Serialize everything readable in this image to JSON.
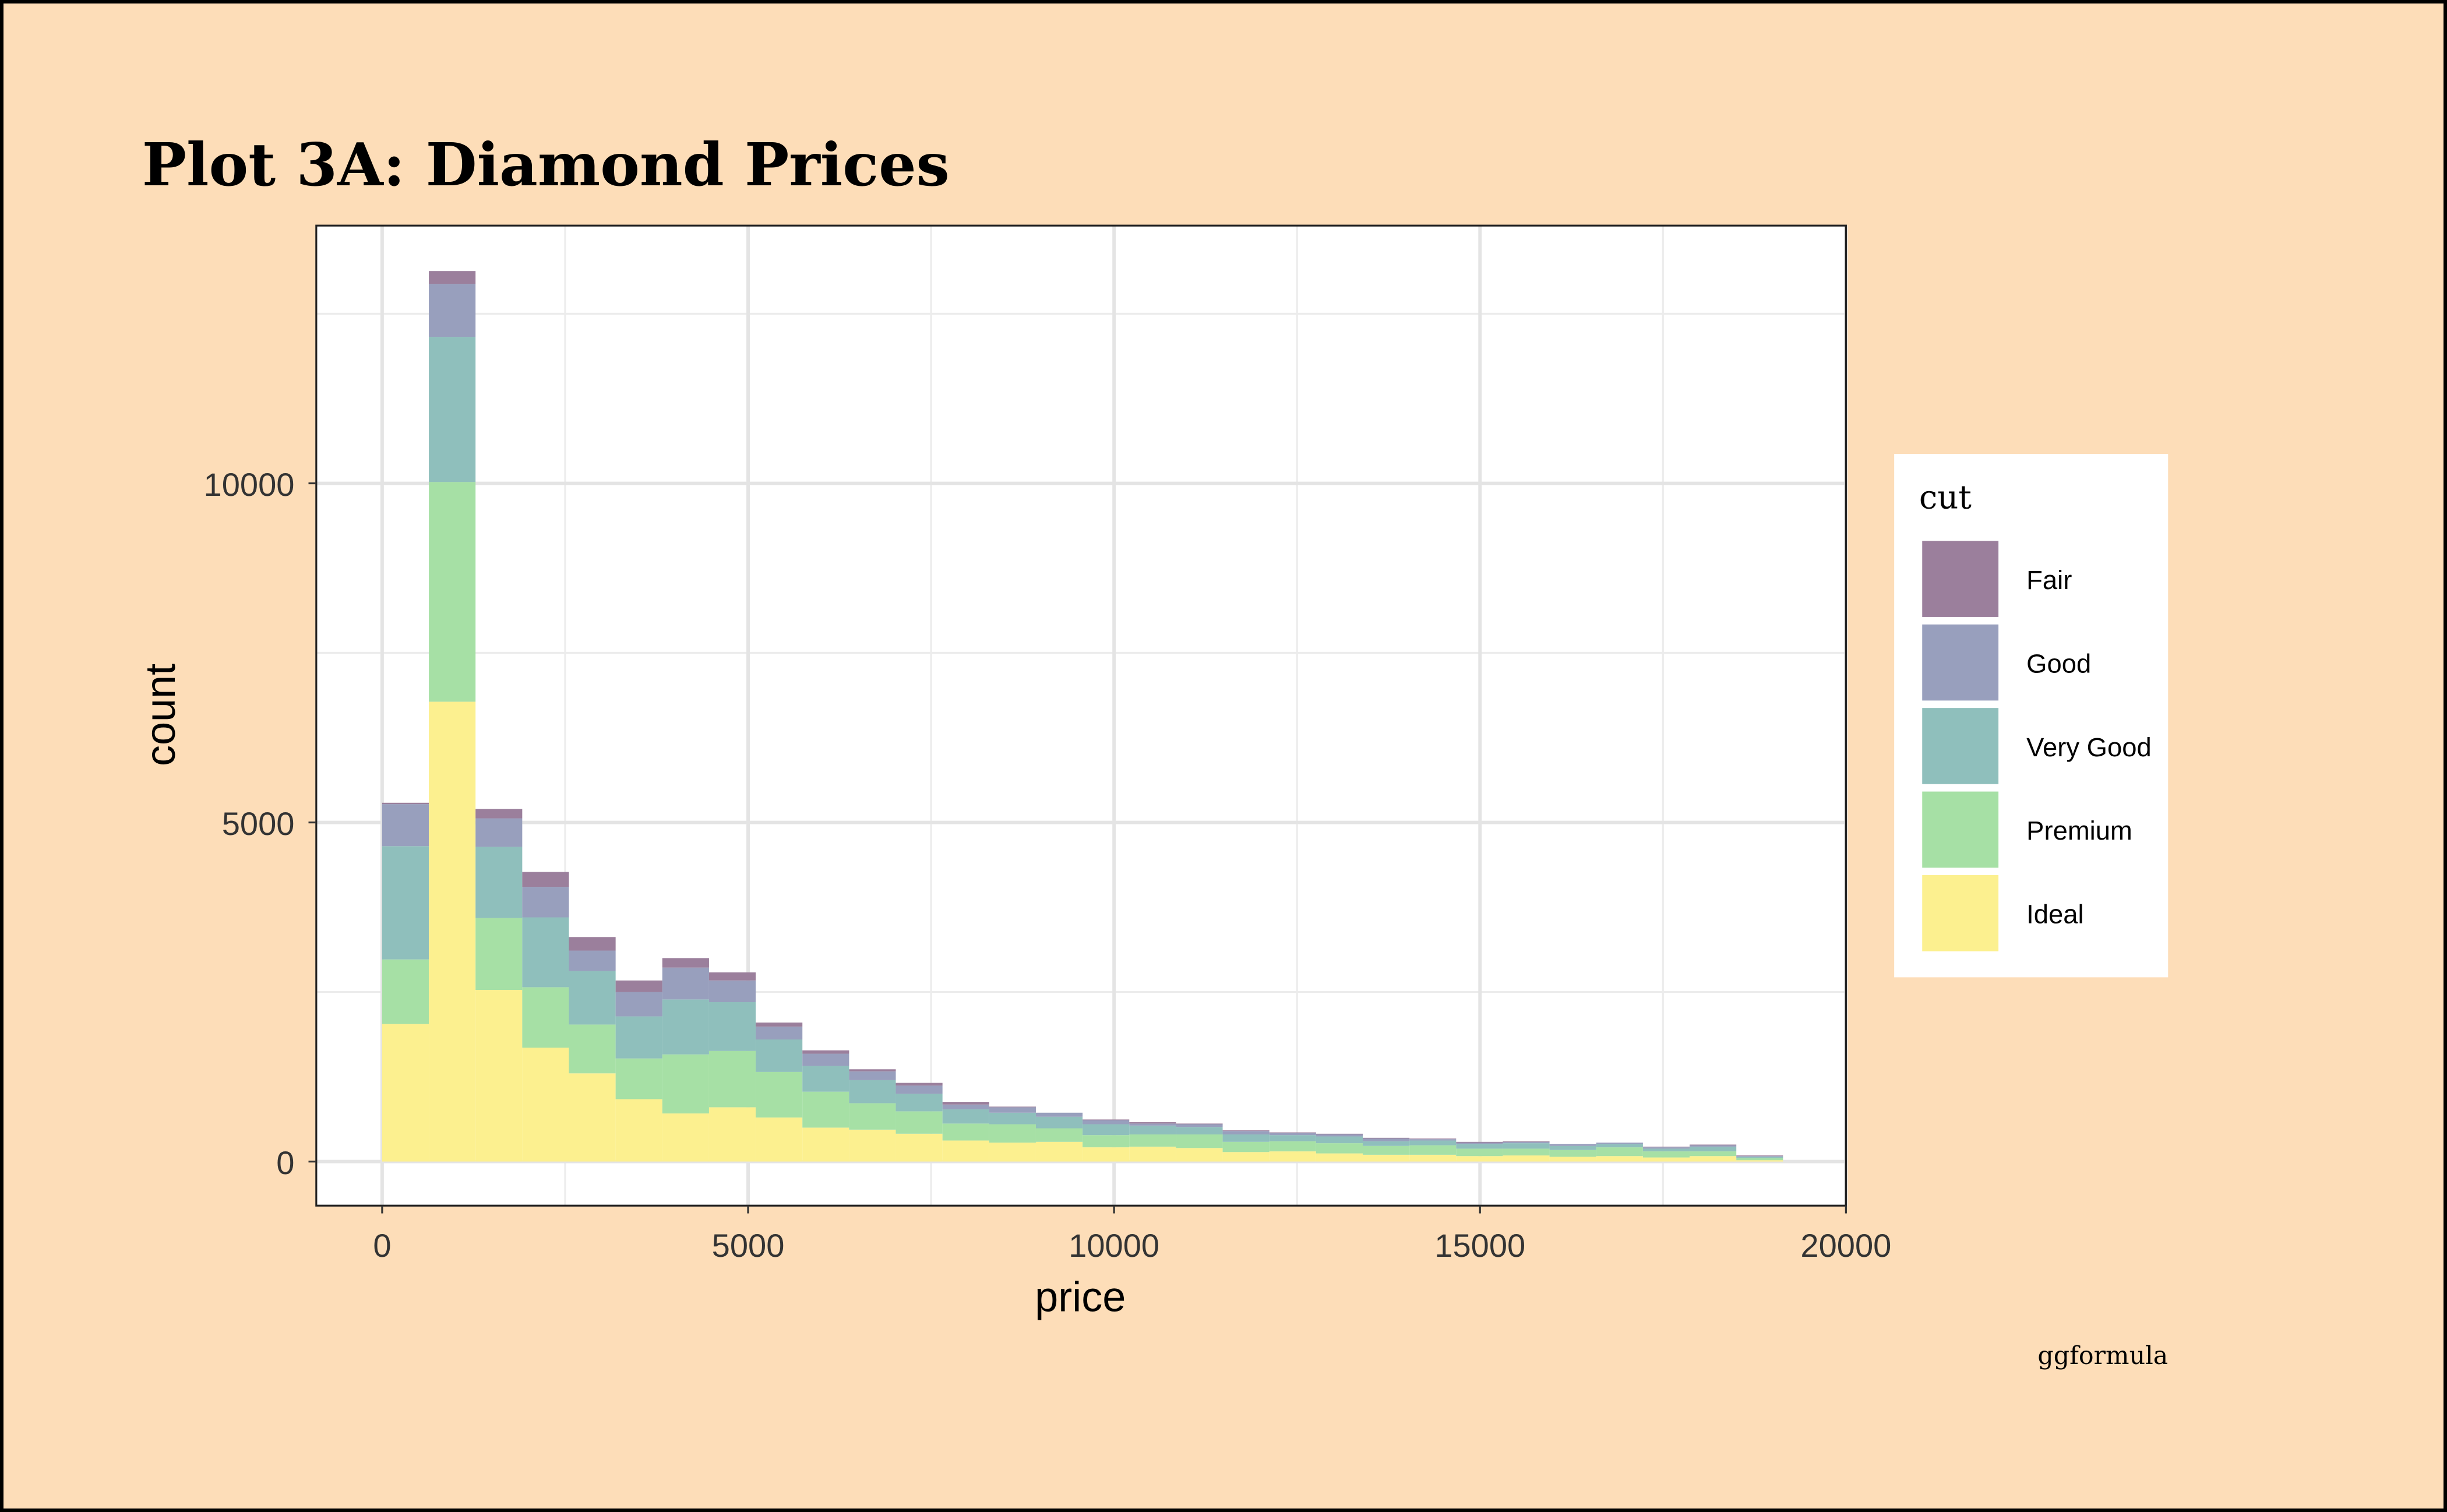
{
  "chart_data": {
    "type": "bar",
    "subtype": "stacked-histogram",
    "title": "Plot 3A: Diamond Prices",
    "xlabel": "price",
    "ylabel": "count",
    "caption": "ggformula",
    "xlim": [
      -900,
      20000
    ],
    "ylim": [
      -650,
      13800
    ],
    "x_ticks": [
      0,
      5000,
      10000,
      15000,
      20000
    ],
    "x_tick_labels": [
      "0",
      "5000",
      "10000",
      "15000",
      "20000"
    ],
    "y_ticks": [
      0,
      5000,
      10000
    ],
    "y_tick_labels": [
      "0",
      "5000",
      "10000"
    ],
    "grid": true,
    "bin_width": 638,
    "bin_start": 0,
    "legend": {
      "title": "cut",
      "placement": "right"
    },
    "series": [
      {
        "name": "Fair",
        "color": "#9b7f9c",
        "values": [
          20,
          190,
          140,
          220,
          200,
          170,
          140,
          120,
          60,
          50,
          30,
          40,
          40,
          10,
          0,
          10,
          20,
          10,
          10,
          10,
          10,
          10,
          10,
          10,
          10,
          0,
          0,
          10,
          10,
          10
        ]
      },
      {
        "name": "Good",
        "color": "#989fbd",
        "values": [
          620,
          780,
          420,
          450,
          300,
          360,
          470,
          320,
          190,
          180,
          130,
          120,
          70,
          80,
          60,
          60,
          30,
          40,
          50,
          30,
          30,
          40,
          20,
          20,
          20,
          30,
          20,
          20,
          20,
          10
        ]
      },
      {
        "name": "Very Good",
        "color": "#8fbfbc",
        "values": [
          1670,
          2140,
          1050,
          1030,
          790,
          620,
          810,
          720,
          480,
          380,
          340,
          260,
          210,
          170,
          170,
          160,
          130,
          110,
          110,
          90,
          100,
          70,
          70,
          70,
          80,
          60,
          50,
          40,
          70,
          20
        ]
      },
      {
        "name": "Premium",
        "color": "#a6e0a5",
        "values": [
          950,
          3240,
          1060,
          890,
          720,
          600,
          870,
          830,
          670,
          530,
          390,
          330,
          250,
          270,
          200,
          180,
          180,
          200,
          150,
          150,
          150,
          130,
          140,
          110,
          100,
          100,
          130,
          90,
          70,
          30
        ]
      },
      {
        "name": "Ideal",
        "color": "#fcf08f",
        "values": [
          2030,
          6780,
          2530,
          1680,
          1300,
          920,
          710,
          800,
          650,
          500,
          470,
          410,
          310,
          280,
          290,
          210,
          220,
          200,
          140,
          150,
          120,
          100,
          100,
          80,
          90,
          70,
          80,
          60,
          80,
          20
        ]
      }
    ]
  }
}
